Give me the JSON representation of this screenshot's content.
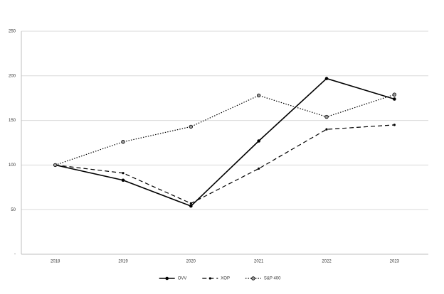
{
  "chart_data": {
    "type": "line",
    "categories": [
      "2018",
      "2019",
      "2020",
      "2021",
      "2022",
      "2023"
    ],
    "series": [
      {
        "name": "OVV",
        "color": "#000000",
        "dash": "solid",
        "values": [
          100,
          83,
          54,
          127,
          197,
          174
        ]
      },
      {
        "name": "XOP",
        "color": "#000000",
        "dash": "dashed",
        "values": [
          100,
          91,
          57,
          96,
          140,
          145
        ]
      },
      {
        "name": "S&P 400",
        "color": "#000000",
        "dash": "dotted",
        "values": [
          100,
          126,
          143,
          178,
          154,
          179
        ]
      }
    ],
    "ylim": [
      0,
      250
    ],
    "yticks": [
      {
        "value": 0,
        "label": "-"
      },
      50,
      100,
      150,
      200,
      250
    ],
    "grid": true,
    "legend": "bottom"
  }
}
